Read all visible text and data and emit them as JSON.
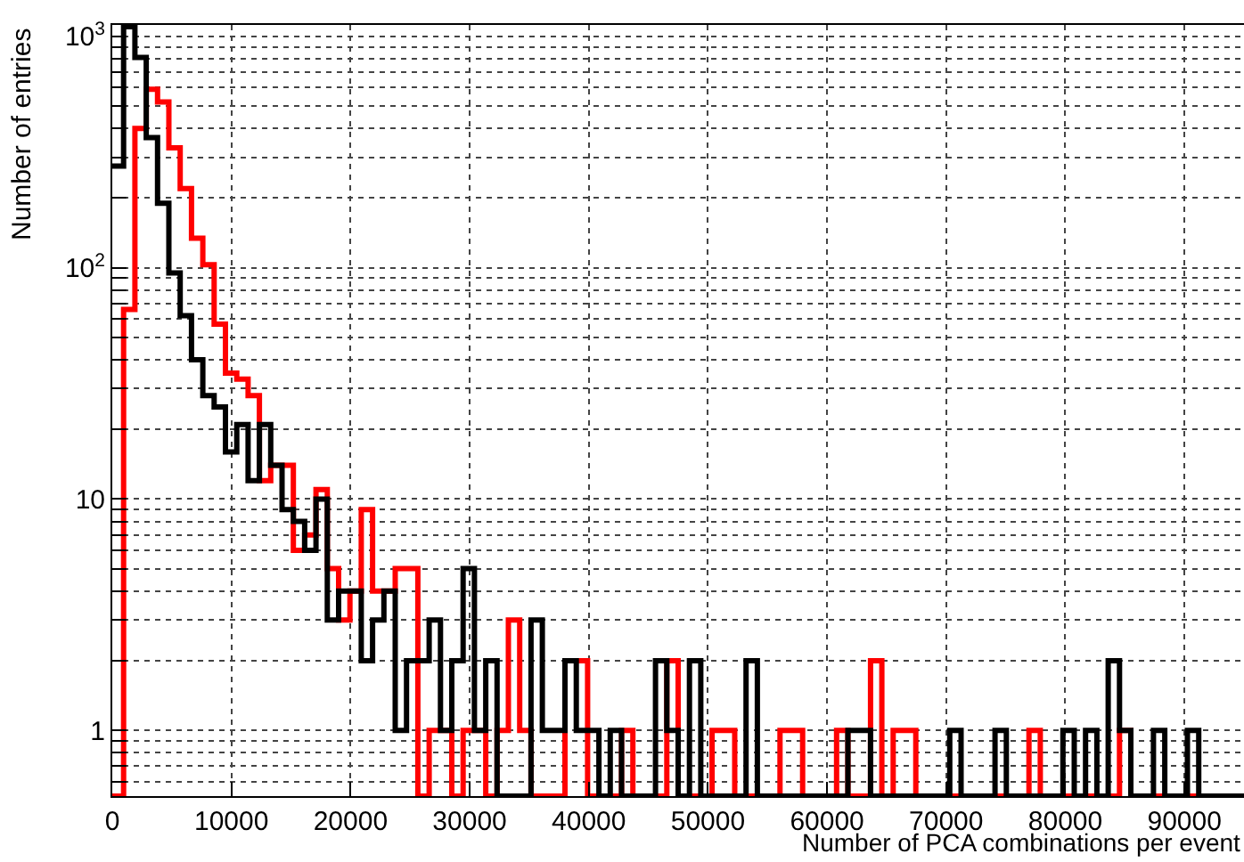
{
  "chart_data": {
    "type": "histogram",
    "xlabel": "Number of PCA combinations per event",
    "ylabel": "Number of entries",
    "bins": [
      0,
      950,
      1900,
      2850,
      3800,
      4750,
      5700,
      6650,
      7600,
      8550,
      9500,
      10450,
      11400,
      12350,
      13300,
      14250,
      15200,
      16150,
      17100,
      18050,
      19000,
      19950,
      20900,
      21850,
      22800,
      23750,
      24700,
      25650,
      26600,
      27550,
      28500,
      29450,
      30400,
      31350,
      32300,
      33250,
      34200,
      35150,
      36100,
      37050,
      38000,
      38950,
      39900,
      40850,
      41800,
      42750,
      43700,
      44650,
      45600,
      46550,
      47500,
      48450,
      49400,
      50350,
      51300,
      52250,
      53200,
      54150,
      55100,
      56050,
      57000,
      57950,
      58900,
      59850,
      60800,
      61750,
      62700,
      63650,
      64600,
      65550,
      66500,
      67450,
      68400,
      69350,
      70300,
      71250,
      72200,
      73150,
      74100,
      75050,
      76000,
      76950,
      77900,
      78850,
      79800,
      80750,
      81700,
      82650,
      83600,
      84550,
      85500,
      86450,
      87400,
      88350,
      89300,
      90250,
      91200,
      92150,
      93100,
      94050,
      95000
    ],
    "series": [
      {
        "color": "#ff0000",
        "values": [
          null,
          66,
          400,
          590,
          520,
          330,
          220,
          134,
          103,
          57,
          35,
          33,
          28,
          12,
          14,
          14,
          6,
          7,
          11,
          5,
          3,
          4,
          9,
          4,
          4,
          5,
          5,
          null,
          1,
          1,
          null,
          1,
          1,
          null,
          1,
          3,
          1,
          null,
          null,
          null,
          2,
          2,
          null,
          null,
          null,
          1,
          null,
          null,
          null,
          2,
          null,
          null,
          null,
          1,
          1,
          null,
          null,
          null,
          null,
          1,
          1,
          null,
          null,
          null,
          1,
          null,
          null,
          2,
          null,
          1,
          1,
          null,
          null,
          null,
          null,
          null,
          null,
          null,
          null,
          null,
          null,
          1,
          null,
          null,
          null,
          null,
          null,
          null,
          null,
          1,
          null,
          null,
          null,
          null,
          null,
          null,
          null,
          null,
          null,
          null
        ]
      },
      {
        "color": "#000000",
        "values": [
          275,
          1100,
          810,
          365,
          190,
          95,
          62,
          40,
          28,
          25,
          16,
          21,
          12,
          21,
          14,
          9,
          8,
          6,
          10,
          3,
          4,
          4,
          2,
          3,
          4,
          1,
          2,
          2,
          3,
          1,
          2,
          5,
          1,
          2,
          null,
          null,
          null,
          3,
          1,
          1,
          2,
          1,
          1,
          null,
          1,
          null,
          null,
          null,
          2,
          1,
          null,
          2,
          null,
          null,
          null,
          null,
          2,
          null,
          null,
          null,
          null,
          null,
          null,
          null,
          null,
          1,
          1,
          null,
          null,
          null,
          null,
          null,
          null,
          null,
          1,
          null,
          null,
          null,
          1,
          null,
          null,
          null,
          null,
          null,
          1,
          null,
          1,
          null,
          2,
          1,
          null,
          null,
          1,
          null,
          null,
          1,
          null,
          null,
          null,
          null
        ]
      }
    ],
    "xlim": [
      0,
      95000
    ],
    "xticks": [
      0,
      10000,
      20000,
      30000,
      40000,
      50000,
      60000,
      70000,
      80000,
      90000
    ],
    "ylim": [
      0.52,
      1120
    ],
    "log": "y",
    "yticks": [
      {
        "value": 0.6,
        "label": null
      },
      {
        "value": 0.7,
        "label": null
      },
      {
        "value": 0.8,
        "label": null
      },
      {
        "value": 0.9,
        "label": null
      },
      1,
      {
        "value": 2,
        "label": null
      },
      {
        "value": 3,
        "label": null
      },
      {
        "value": 4,
        "label": null
      },
      {
        "value": 5,
        "label": null
      },
      {
        "value": 6,
        "label": null
      },
      {
        "value": 7,
        "label": null
      },
      {
        "value": 8,
        "label": null
      },
      {
        "value": 9,
        "label": null
      },
      10,
      {
        "value": 20,
        "label": null
      },
      {
        "value": 30,
        "label": null
      },
      {
        "value": 40,
        "label": null
      },
      {
        "value": 50,
        "label": null
      },
      {
        "value": 60,
        "label": null
      },
      {
        "value": 70,
        "label": null
      },
      {
        "value": 80,
        "label": null
      },
      {
        "value": 90,
        "label": null
      },
      {
        "value": 100,
        "label": "10$^{2}$"
      },
      {
        "value": 200,
        "label": null
      },
      {
        "value": 300,
        "label": null
      },
      {
        "value": 400,
        "label": null
      },
      {
        "value": 500,
        "label": null
      },
      {
        "value": 600,
        "label": null
      },
      {
        "value": 700,
        "label": null
      },
      {
        "value": 800,
        "label": null
      },
      {
        "value": 900,
        "label": null
      },
      {
        "value": 1000,
        "label": "10$^{3}$"
      }
    ],
    "grid": true
  }
}
